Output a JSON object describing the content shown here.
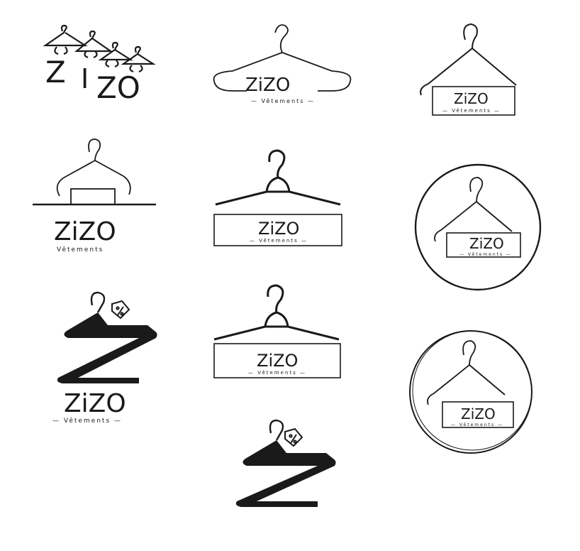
{
  "logos": [
    {
      "brand_parts": [
        "Z",
        "I",
        "ZO"
      ],
      "tagline": ""
    },
    {
      "brand": "ZiZO",
      "tagline": "— Vêtements —"
    },
    {
      "brand": "ZiZO",
      "tagline": "— Vêtements —"
    },
    {
      "brand": "ZiZO",
      "tagline": "Vêtements"
    },
    {
      "brand": "ZiZO",
      "tagline": "— Vêtements —"
    },
    {
      "brand": "ZiZO",
      "tagline": "— Vêtements —"
    },
    {
      "brand": "ZiZO",
      "tagline": "— Vêtements —"
    },
    {
      "brand": "ZiZO",
      "tagline": "— Vêtements —"
    },
    {
      "brand": "ZiZO",
      "tagline": "— Vêtements —"
    },
    {
      "brand": "",
      "tagline": ""
    }
  ],
  "colors": {
    "ink": "#1a1a1a",
    "background": "#ffffff"
  }
}
